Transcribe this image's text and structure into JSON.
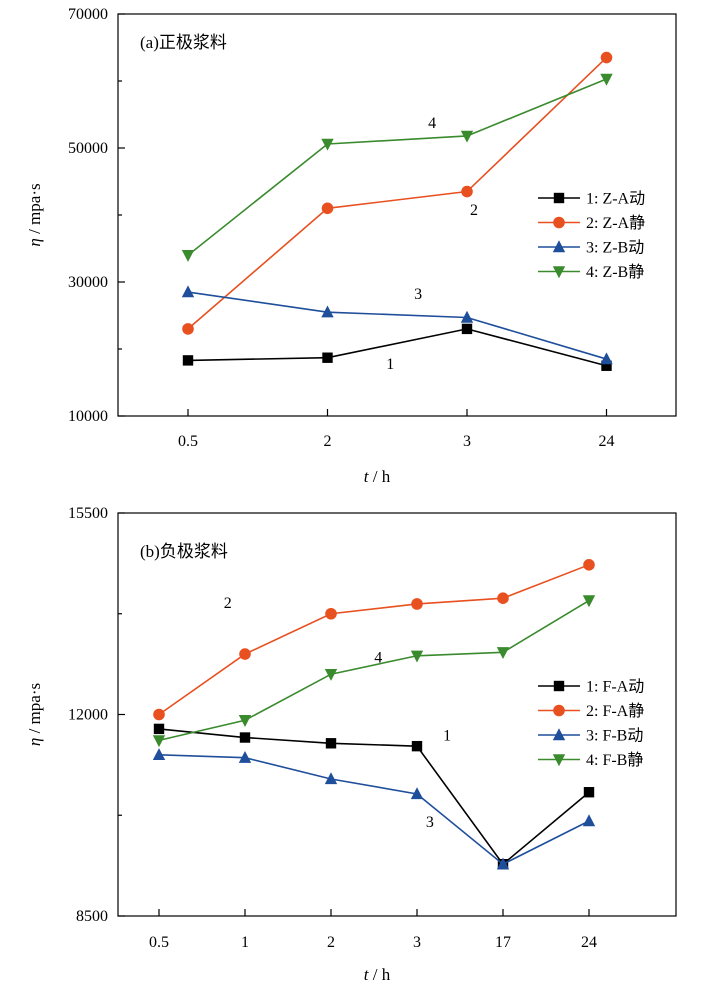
{
  "chart_data": [
    {
      "type": "line",
      "panel_label": "(a)正极浆料",
      "categories": [
        "0.5",
        "2",
        "3",
        "24"
      ],
      "ylim": [
        10000,
        70000
      ],
      "y_ticks": [
        "10000",
        "30000",
        "50000",
        "70000"
      ],
      "xlabel_italic": "t",
      "xlabel_unit": " / h",
      "ylabel_italic": "η",
      "ylabel_unit": " / mpa·s",
      "legend_position": "right",
      "series": [
        {
          "name": "1: Z-A动",
          "color": "#000000",
          "marker": "square",
          "values": [
            18300,
            18700,
            23000,
            17500
          ]
        },
        {
          "name": "2: Z-A静",
          "color": "#e8501f",
          "marker": "circle",
          "values": [
            23000,
            41000,
            43500,
            63500
          ]
        },
        {
          "name": "3: Z-B动",
          "color": "#1f4e9b",
          "marker": "triangle-up",
          "values": [
            28500,
            25500,
            24700,
            18500
          ]
        },
        {
          "name": "4: Z-B静",
          "color": "#3a8a2e",
          "marker": "triangle-down",
          "values": [
            34000,
            50600,
            51800,
            60300
          ]
        }
      ],
      "annotations": [
        {
          "text": "1",
          "x_index": 1.45,
          "y": 17000
        },
        {
          "text": "2",
          "x_index": 2.05,
          "y": 40000
        },
        {
          "text": "3",
          "x_index": 1.65,
          "y": 27500
        },
        {
          "text": "4",
          "x_index": 1.75,
          "y": 53000
        }
      ]
    },
    {
      "type": "line",
      "panel_label": "(b)负极浆料",
      "categories": [
        "0.5",
        "1",
        "2",
        "3",
        "17",
        "24"
      ],
      "ylim": [
        8500,
        15500
      ],
      "y_ticks": [
        "8500",
        "12000",
        "15500"
      ],
      "xlabel_italic": "t",
      "xlabel_unit": " / h",
      "ylabel_italic": "η",
      "ylabel_unit": " / mpa·s",
      "legend_position": "right",
      "series": [
        {
          "name": "1: F-A动",
          "color": "#000000",
          "marker": "square",
          "values": [
            11750,
            11600,
            11500,
            11450,
            9400,
            10650
          ]
        },
        {
          "name": "2: F-A静",
          "color": "#e8501f",
          "marker": "circle",
          "values": [
            12000,
            13050,
            13750,
            13920,
            14020,
            14600
          ]
        },
        {
          "name": "3: F-B动",
          "color": "#1f4e9b",
          "marker": "triangle-up",
          "values": [
            11300,
            11250,
            10880,
            10620,
            9400,
            10150
          ]
        },
        {
          "name": "4: F-B静",
          "color": "#3a8a2e",
          "marker": "triangle-down",
          "values": [
            11550,
            11900,
            12700,
            13020,
            13080,
            13980
          ]
        }
      ],
      "annotations": [
        {
          "text": "1",
          "x_index": 3.35,
          "y": 11550
        },
        {
          "text": "2",
          "x_index": 0.8,
          "y": 13850
        },
        {
          "text": "3",
          "x_index": 3.15,
          "y": 10050
        },
        {
          "text": "4",
          "x_index": 2.55,
          "y": 12900
        }
      ]
    }
  ]
}
